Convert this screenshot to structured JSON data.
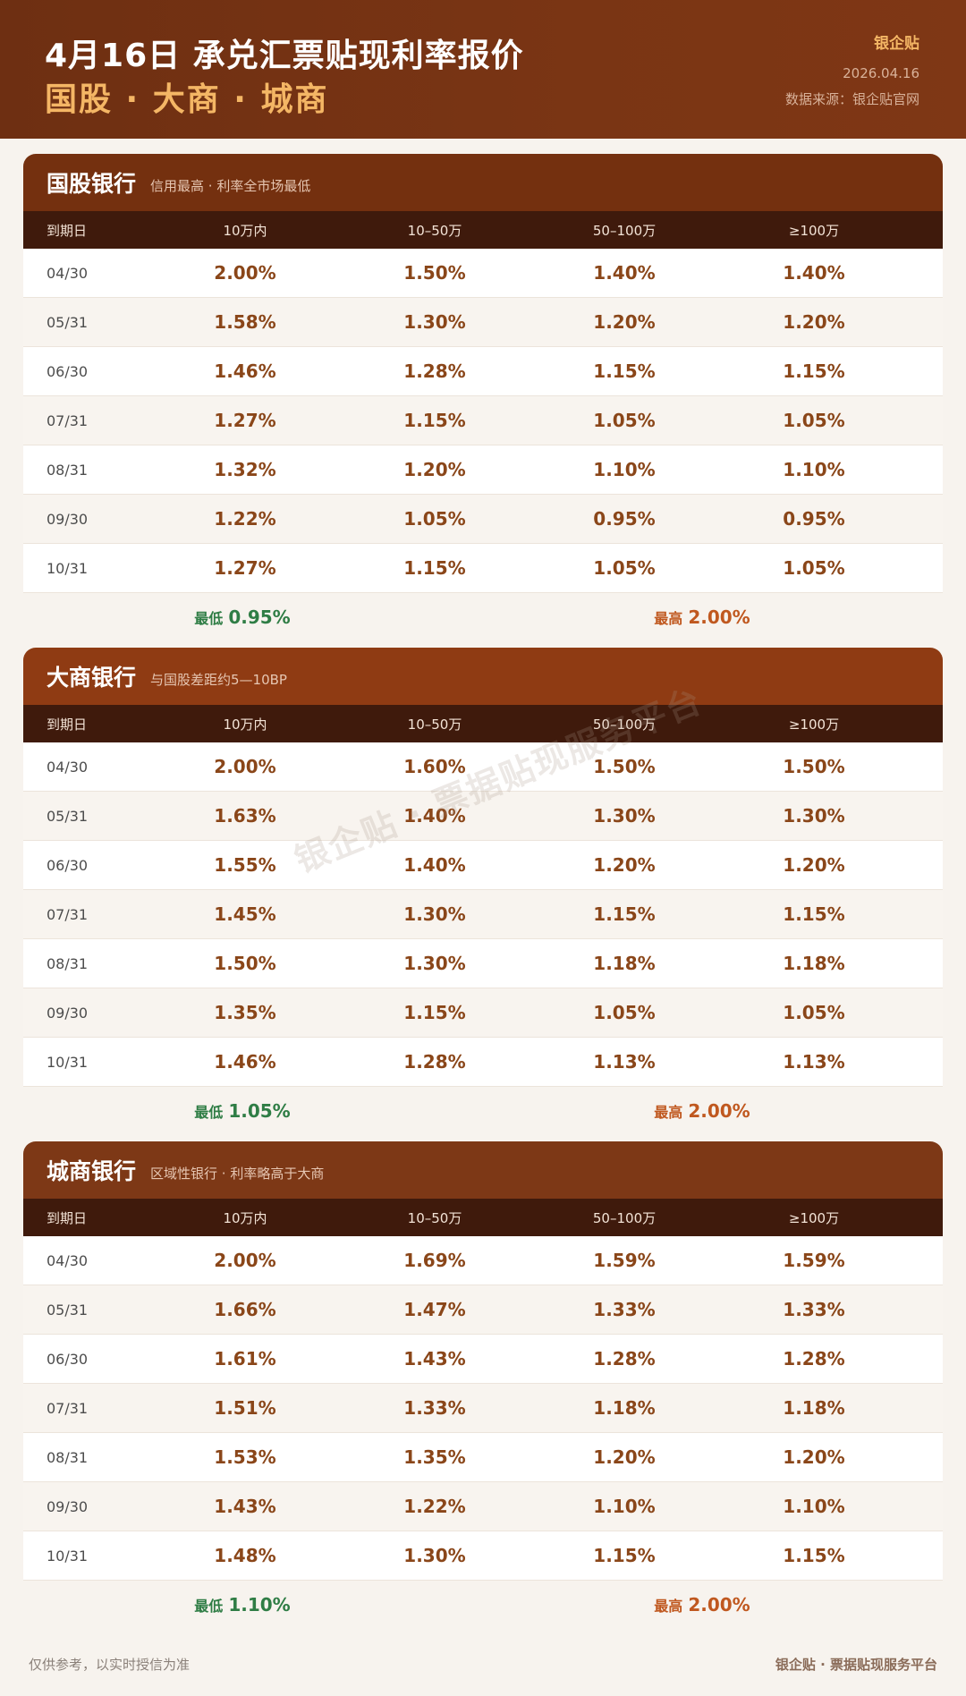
{
  "header": {
    "title": "4月16日 承兑汇票贴现利率报价",
    "subtitle": "国股 · 大商 · 城商",
    "brand": "银企贴",
    "date": "2026.04.16",
    "source": "数据来源：银企贴官网"
  },
  "columns": [
    "到期日",
    "10万内",
    "10–50万",
    "50–100万",
    "≥100万"
  ],
  "sections": [
    {
      "title": "国股银行",
      "note": "信用最高 · 利率全市场最低",
      "rows": [
        [
          "04/30",
          "2.00%",
          "1.50%",
          "1.40%",
          "1.40%"
        ],
        [
          "05/31",
          "1.58%",
          "1.30%",
          "1.20%",
          "1.20%"
        ],
        [
          "06/30",
          "1.46%",
          "1.28%",
          "1.15%",
          "1.15%"
        ],
        [
          "07/31",
          "1.27%",
          "1.15%",
          "1.05%",
          "1.05%"
        ],
        [
          "08/31",
          "1.32%",
          "1.20%",
          "1.10%",
          "1.10%"
        ],
        [
          "09/30",
          "1.22%",
          "1.05%",
          "0.95%",
          "0.95%"
        ],
        [
          "10/31",
          "1.27%",
          "1.15%",
          "1.05%",
          "1.05%"
        ]
      ],
      "min_label": "最低",
      "min_value": "0.95%",
      "max_label": "最高",
      "max_value": "2.00%",
      "head_color": "#74300f"
    },
    {
      "title": "大商银行",
      "note": "与国股差距约5—10BP",
      "rows": [
        [
          "04/30",
          "2.00%",
          "1.60%",
          "1.50%",
          "1.50%"
        ],
        [
          "05/31",
          "1.63%",
          "1.40%",
          "1.30%",
          "1.30%"
        ],
        [
          "06/30",
          "1.55%",
          "1.40%",
          "1.20%",
          "1.20%"
        ],
        [
          "07/31",
          "1.45%",
          "1.30%",
          "1.15%",
          "1.15%"
        ],
        [
          "08/31",
          "1.50%",
          "1.30%",
          "1.18%",
          "1.18%"
        ],
        [
          "09/30",
          "1.35%",
          "1.15%",
          "1.05%",
          "1.05%"
        ],
        [
          "10/31",
          "1.46%",
          "1.28%",
          "1.13%",
          "1.13%"
        ]
      ],
      "min_label": "最低",
      "min_value": "1.05%",
      "max_label": "最高",
      "max_value": "2.00%",
      "head_color": "#8f3b13"
    },
    {
      "title": "城商银行",
      "note": "区域性银行 · 利率略高于大商",
      "rows": [
        [
          "04/30",
          "2.00%",
          "1.69%",
          "1.59%",
          "1.59%"
        ],
        [
          "05/31",
          "1.66%",
          "1.47%",
          "1.33%",
          "1.33%"
        ],
        [
          "06/30",
          "1.61%",
          "1.43%",
          "1.28%",
          "1.28%"
        ],
        [
          "07/31",
          "1.51%",
          "1.33%",
          "1.18%",
          "1.18%"
        ],
        [
          "08/31",
          "1.53%",
          "1.35%",
          "1.20%",
          "1.20%"
        ],
        [
          "09/30",
          "1.43%",
          "1.22%",
          "1.10%",
          "1.10%"
        ],
        [
          "10/31",
          "1.48%",
          "1.30%",
          "1.15%",
          "1.15%"
        ]
      ],
      "min_label": "最低",
      "min_value": "1.10%",
      "max_label": "最高",
      "max_value": "2.00%",
      "head_color": "#7d3816"
    }
  ],
  "watermark": "银企贴 · 票据贴现服务平台",
  "footer": {
    "left": "仅供参考，以实时授信为准",
    "right": "银企贴 · 票据贴现服务平台"
  }
}
